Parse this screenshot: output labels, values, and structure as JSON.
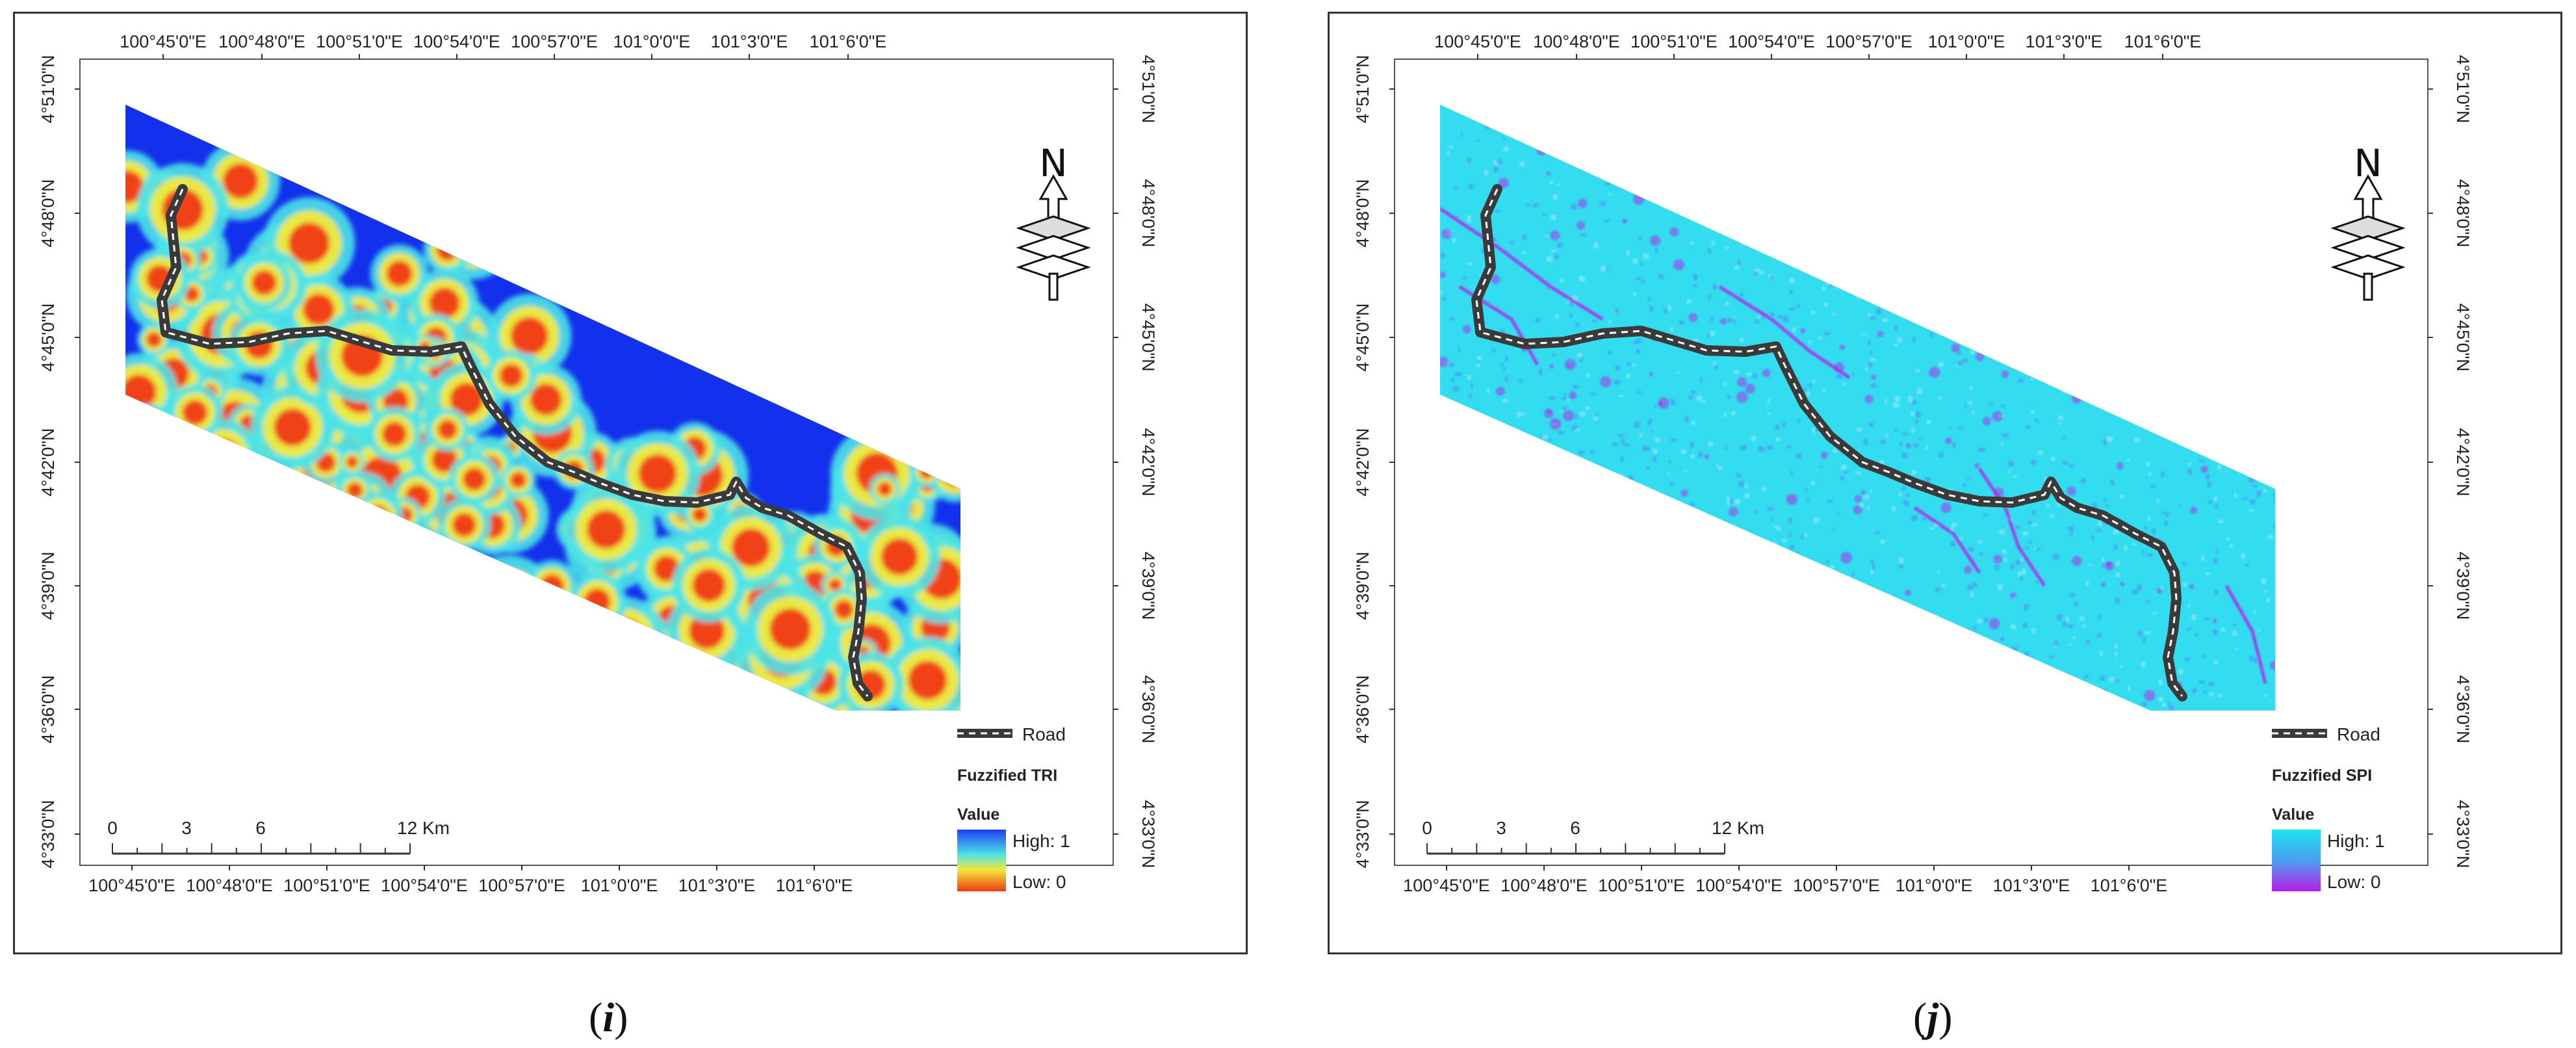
{
  "figure": {
    "panels": [
      {
        "id": "i",
        "caption_letter": "i",
        "top_ticks": [
          "100°45'0\"E",
          "100°48'0\"E",
          "100°51'0\"E",
          "100°54'0\"E",
          "100°57'0\"E",
          "101°0'0\"E",
          "101°3'0\"E",
          "101°6'0\"E"
        ],
        "bottom_ticks": [
          "100°45'0\"E",
          "100°48'0\"E",
          "100°51'0\"E",
          "100°54'0\"E",
          "100°57'0\"E",
          "101°0'0\"E",
          "101°3'0\"E",
          "101°6'0\"E"
        ],
        "left_ticks": [
          "4°51'0\"N",
          "4°48'0\"N",
          "4°45'0\"N",
          "4°42'0\"N",
          "4°39'0\"N",
          "4°36'0\"N",
          "4°33'0\"N"
        ],
        "right_ticks": [
          "4°51'0\"N",
          "4°48'0\"N",
          "4°45'0\"N",
          "4°42'0\"N",
          "4°39'0\"N",
          "4°36'0\"N",
          "4°33'0\"N"
        ],
        "north_label": "N",
        "road_label": "Road",
        "legend_title": "Fuzzified TRI",
        "legend_value": "Value",
        "legend_high": "High: 1",
        "legend_low": "Low: 0",
        "scale_labels": [
          "0",
          "3",
          "6",
          "12 Km"
        ],
        "colors": {
          "high": "#1f3cf2",
          "mid": "#4be3e8",
          "mid2": "#f2e93b",
          "low": "#f03a12",
          "base": "#1330ec"
        }
      },
      {
        "id": "j",
        "caption_letter": "j",
        "top_ticks": [
          "100°45'0\"E",
          "100°48'0\"E",
          "100°51'0\"E",
          "100°54'0\"E",
          "100°57'0\"E",
          "101°0'0\"E",
          "101°3'0\"E",
          "101°6'0\"E"
        ],
        "bottom_ticks": [
          "100°45'0\"E",
          "100°48'0\"E",
          "100°51'0\"E",
          "100°54'0\"E",
          "100°57'0\"E",
          "101°0'0\"E",
          "101°3'0\"E",
          "101°6'0\"E"
        ],
        "left_ticks": [
          "4°51'0\"N",
          "4°48'0\"N",
          "4°45'0\"N",
          "4°42'0\"N",
          "4°39'0\"N",
          "4°36'0\"N",
          "4°33'0\"N"
        ],
        "right_ticks": [
          "4°51'0\"N",
          "4°48'0\"N",
          "4°45'0\"N",
          "4°42'0\"N",
          "4°39'0\"N",
          "4°36'0\"N",
          "4°33'0\"N"
        ],
        "north_label": "N",
        "road_label": "Road",
        "legend_title": "Fuzzified SPI",
        "legend_value": "Value",
        "legend_high": "High: 1",
        "legend_low": "Low: 0",
        "scale_labels": [
          "0",
          "3",
          "6",
          "12 Km"
        ],
        "colors": {
          "high": "#1ee3f0",
          "mid": "#4aa0f0",
          "low": "#b81ee8",
          "base": "#33dcef"
        }
      }
    ]
  }
}
